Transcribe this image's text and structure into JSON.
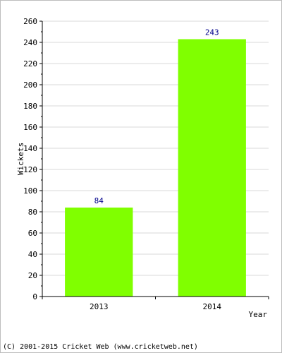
{
  "chart_data": {
    "type": "bar",
    "categories": [
      "2013",
      "2014"
    ],
    "values": [
      84,
      243
    ],
    "data_labels": [
      "84",
      "243"
    ],
    "xlabel": "Year",
    "ylabel": "Wickets",
    "ylim": [
      0,
      260
    ],
    "yticks": [
      0,
      20,
      40,
      60,
      80,
      100,
      120,
      140,
      160,
      180,
      200,
      220,
      240,
      260
    ],
    "grid": true,
    "bar_color": "#80ff00",
    "grid_color": "#d9d9d9",
    "label_color": "#00008b"
  },
  "footer": {
    "copyright": "(C) 2001-2015 Cricket Web (www.cricketweb.net)"
  }
}
